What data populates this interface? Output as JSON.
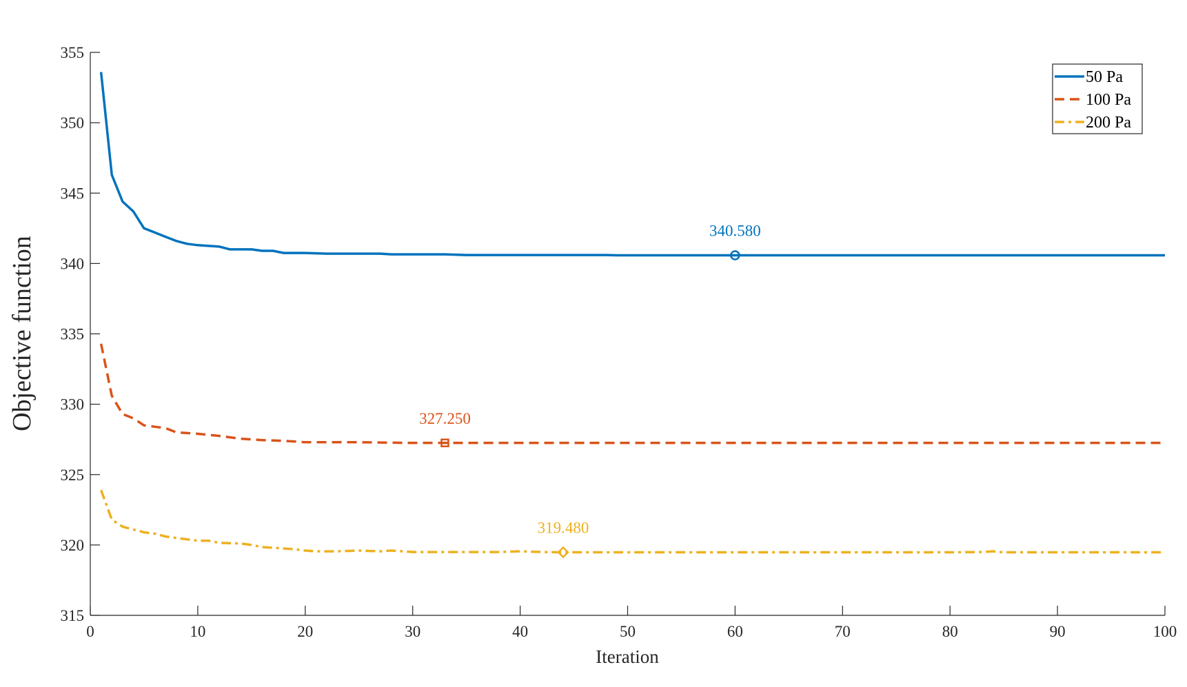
{
  "chart_data": {
    "type": "line",
    "xlabel": "Iteration",
    "ylabel": "Objective function",
    "xlim": [
      0,
      100
    ],
    "ylim": [
      315,
      355
    ],
    "xticks": [
      0,
      10,
      20,
      30,
      40,
      50,
      60,
      70,
      80,
      90,
      100
    ],
    "yticks": [
      315,
      320,
      325,
      330,
      335,
      340,
      345,
      350,
      355
    ],
    "grid": false,
    "legend_position": "top-right",
    "series": [
      {
        "name": "50 Pa",
        "color": "#0072BD",
        "line_style": "solid",
        "marker": "circle",
        "points": [
          [
            1,
            353.6
          ],
          [
            2,
            346.3
          ],
          [
            3,
            344.4
          ],
          [
            4,
            343.7
          ],
          [
            5,
            342.5
          ],
          [
            6,
            342.2
          ],
          [
            7,
            341.9
          ],
          [
            8,
            341.6
          ],
          [
            9,
            341.4
          ],
          [
            10,
            341.3
          ],
          [
            12,
            341.2
          ],
          [
            13,
            341.0
          ],
          [
            15,
            341.0
          ],
          [
            16,
            340.9
          ],
          [
            17,
            340.9
          ],
          [
            18,
            340.75
          ],
          [
            20,
            340.75
          ],
          [
            22,
            340.7
          ],
          [
            25,
            340.7
          ],
          [
            27,
            340.7
          ],
          [
            28,
            340.65
          ],
          [
            30,
            340.65
          ],
          [
            33,
            340.65
          ],
          [
            35,
            340.6
          ],
          [
            45,
            340.6
          ],
          [
            48,
            340.6
          ],
          [
            49,
            340.58
          ],
          [
            60,
            340.58
          ],
          [
            80,
            340.58
          ],
          [
            100,
            340.58
          ]
        ],
        "annotation": {
          "x": 60,
          "y": 340.58,
          "label": "340.580"
        }
      },
      {
        "name": "100 Pa",
        "color": "#D95319",
        "line_style": "dashed",
        "marker": "square",
        "points": [
          [
            1,
            334.3
          ],
          [
            2,
            330.6
          ],
          [
            3,
            329.3
          ],
          [
            4,
            329.0
          ],
          [
            5,
            328.5
          ],
          [
            6,
            328.4
          ],
          [
            7,
            328.3
          ],
          [
            8,
            328.0
          ],
          [
            10,
            327.9
          ],
          [
            12,
            327.75
          ],
          [
            14,
            327.55
          ],
          [
            16,
            327.45
          ],
          [
            18,
            327.4
          ],
          [
            20,
            327.3
          ],
          [
            25,
            327.3
          ],
          [
            30,
            327.25
          ],
          [
            33,
            327.25
          ],
          [
            40,
            327.25
          ],
          [
            60,
            327.25
          ],
          [
            80,
            327.25
          ],
          [
            100,
            327.25
          ]
        ],
        "annotation": {
          "x": 33,
          "y": 327.25,
          "label": "327.250"
        }
      },
      {
        "name": "200 Pa",
        "color": "#EDB120",
        "line_style": "dash-dot",
        "marker": "diamond",
        "points": [
          [
            1,
            323.9
          ],
          [
            2,
            321.8
          ],
          [
            3,
            321.3
          ],
          [
            4,
            321.1
          ],
          [
            5,
            320.9
          ],
          [
            6,
            320.8
          ],
          [
            7,
            320.6
          ],
          [
            8,
            320.5
          ],
          [
            9,
            320.4
          ],
          [
            10,
            320.3
          ],
          [
            11,
            320.3
          ],
          [
            12,
            320.15
          ],
          [
            14,
            320.1
          ],
          [
            15,
            320.0
          ],
          [
            16,
            319.85
          ],
          [
            17,
            319.8
          ],
          [
            18,
            319.75
          ],
          [
            19,
            319.7
          ],
          [
            20,
            319.6
          ],
          [
            21,
            319.55
          ],
          [
            23,
            319.55
          ],
          [
            25,
            319.6
          ],
          [
            27,
            319.55
          ],
          [
            28,
            319.6
          ],
          [
            30,
            319.5
          ],
          [
            35,
            319.5
          ],
          [
            38,
            319.5
          ],
          [
            40,
            319.55
          ],
          [
            42,
            319.5
          ],
          [
            44,
            319.48
          ],
          [
            50,
            319.48
          ],
          [
            60,
            319.48
          ],
          [
            70,
            319.48
          ],
          [
            80,
            319.48
          ],
          [
            83,
            319.5
          ],
          [
            84,
            319.55
          ],
          [
            85,
            319.48
          ],
          [
            90,
            319.48
          ],
          [
            100,
            319.48
          ]
        ],
        "annotation": {
          "x": 44,
          "y": 319.48,
          "label": "319.480"
        }
      }
    ]
  }
}
